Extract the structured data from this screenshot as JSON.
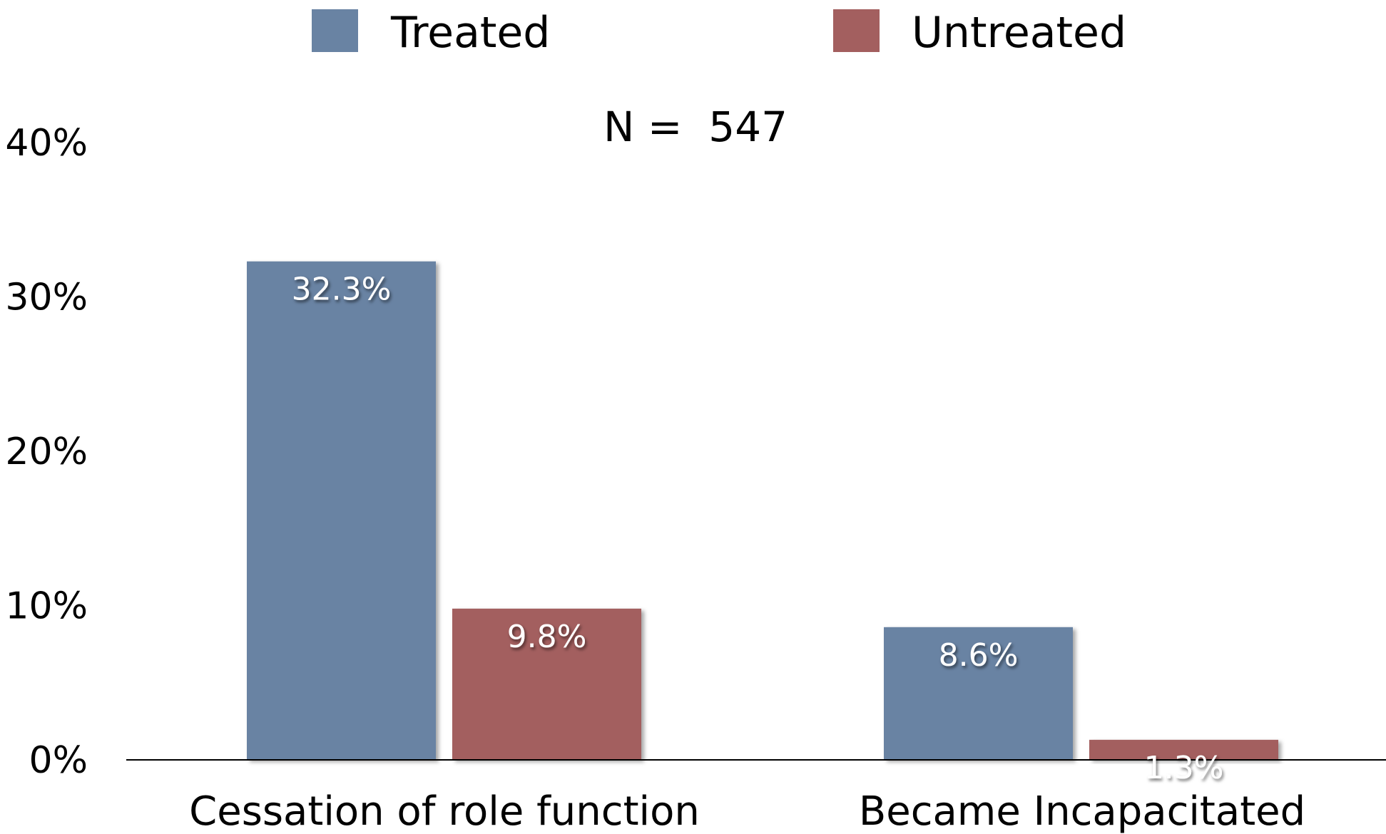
{
  "chart_data": {
    "type": "bar",
    "categories": [
      "Cessation of role function",
      "Became Incapacitated"
    ],
    "series": [
      {
        "name": "Treated",
        "values": [
          32.3,
          8.6
        ],
        "labels": [
          "32.3%",
          "8.6%"
        ],
        "color": "#6983a3"
      },
      {
        "name": "Untreated",
        "values": [
          9.8,
          1.3
        ],
        "labels": [
          "9.8%",
          "1.3%"
        ],
        "color": "#a35f5f"
      }
    ],
    "annotation": "N =  547",
    "y_ticks": [
      {
        "value": 0,
        "label": "0%"
      },
      {
        "value": 10,
        "label": "10%"
      },
      {
        "value": 20,
        "label": "20%"
      },
      {
        "value": 30,
        "label": "30%"
      },
      {
        "value": 40,
        "label": "40%"
      }
    ],
    "ylim": [
      0,
      40
    ],
    "legend_position": "top",
    "grid": false,
    "title": "",
    "xlabel": "",
    "ylabel": ""
  }
}
